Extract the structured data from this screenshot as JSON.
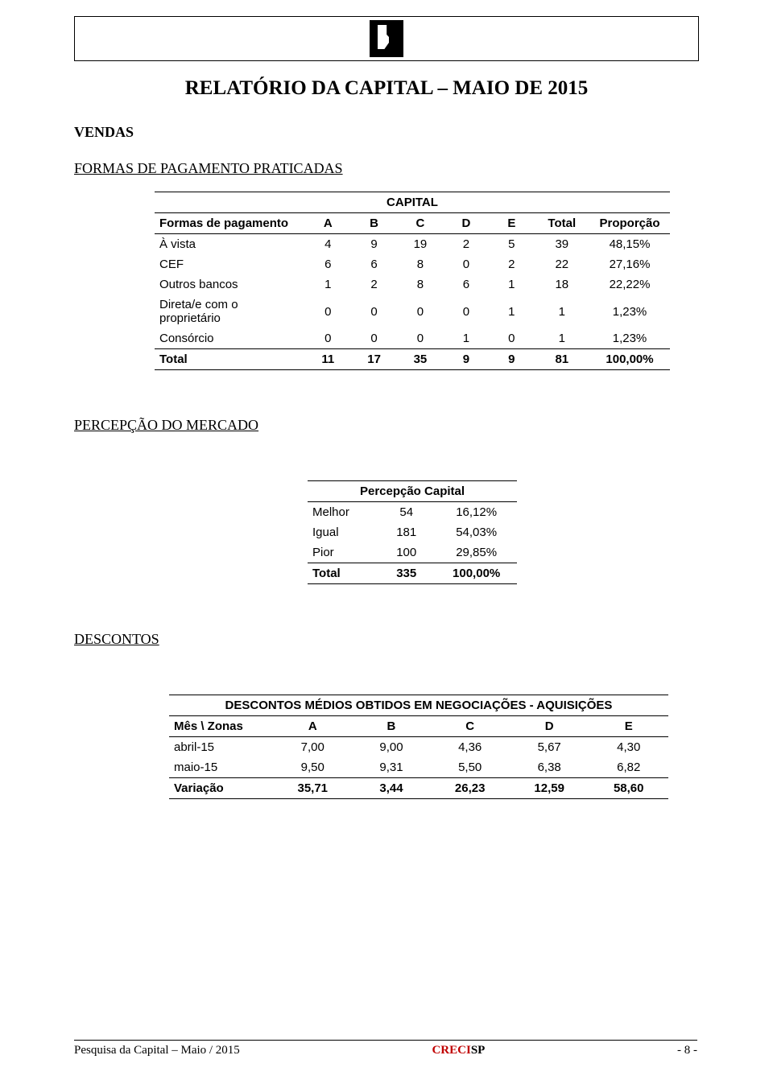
{
  "title": "RELATÓRIO DA CAPITAL – MAIO DE 2015",
  "vendas_heading": "VENDAS",
  "formas_heading": "FORMAS DE PAGAMENTO PRATICADAS",
  "formas_table": {
    "caption": "CAPITAL",
    "columns": [
      "Formas de pagamento",
      "A",
      "B",
      "C",
      "D",
      "E",
      "Total",
      "Proporção"
    ],
    "rows": [
      [
        "À vista",
        "4",
        "9",
        "19",
        "2",
        "5",
        "39",
        "48,15%"
      ],
      [
        "CEF",
        "6",
        "6",
        "8",
        "0",
        "2",
        "22",
        "27,16%"
      ],
      [
        "Outros bancos",
        "1",
        "2",
        "8",
        "6",
        "1",
        "18",
        "22,22%"
      ],
      [
        "Direta/e com o proprietário",
        "0",
        "0",
        "0",
        "0",
        "1",
        "1",
        "1,23%"
      ],
      [
        "Consórcio",
        "0",
        "0",
        "0",
        "1",
        "0",
        "1",
        "1,23%"
      ]
    ],
    "total_row": [
      "Total",
      "11",
      "17",
      "35",
      "9",
      "9",
      "81",
      "100,00%"
    ]
  },
  "percepcao_heading": "PERCEPÇÃO DO MERCADO",
  "percepcao_table": {
    "caption": "Percepção Capital",
    "rows": [
      [
        "Melhor",
        "54",
        "16,12%"
      ],
      [
        "Igual",
        "181",
        "54,03%"
      ],
      [
        "Pior",
        "100",
        "29,85%"
      ]
    ],
    "total_row": [
      "Total",
      "335",
      "100,00%"
    ]
  },
  "descontos_heading": "DESCONTOS",
  "descontos_table": {
    "caption": "DESCONTOS MÉDIOS OBTIDOS EM NEGOCIAÇÕES - AQUISIÇÕES",
    "columns": [
      "Mês \\ Zonas",
      "A",
      "B",
      "C",
      "D",
      "E"
    ],
    "rows": [
      [
        "abril-15",
        "7,00",
        "9,00",
        "4,36",
        "5,67",
        "4,30"
      ],
      [
        "maio-15",
        "9,50",
        "9,31",
        "5,50",
        "6,38",
        "6,82"
      ]
    ],
    "total_row": [
      "Variação",
      "35,71",
      "3,44",
      "26,23",
      "12,59",
      "58,60"
    ]
  },
  "footer": {
    "left": "Pesquisa da Capital – Maio / 2015",
    "center_red": "CRECI",
    "center_black": "SP",
    "right": "- 8 -"
  }
}
